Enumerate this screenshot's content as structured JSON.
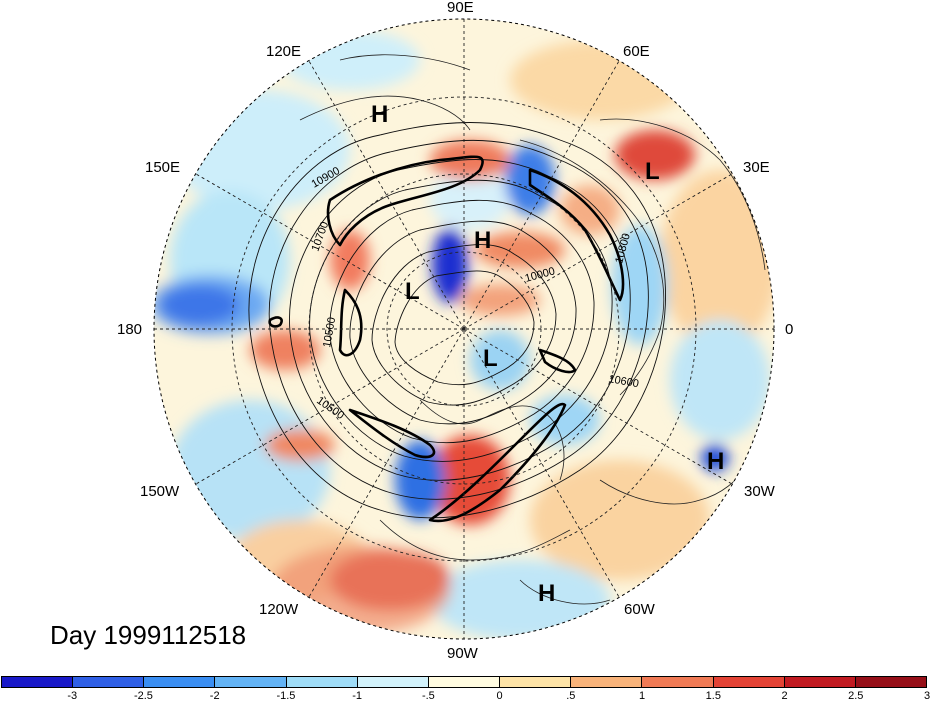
{
  "title": "Day 1999112518",
  "longitude_labels": [
    {
      "key": "lon_0",
      "text": "0"
    },
    {
      "key": "lon_30e",
      "text": "30E"
    },
    {
      "key": "lon_60e",
      "text": "60E"
    },
    {
      "key": "lon_90e",
      "text": "90E"
    },
    {
      "key": "lon_120e",
      "text": "120E"
    },
    {
      "key": "lon_150e",
      "text": "150E"
    },
    {
      "key": "lon_180",
      "text": "180"
    },
    {
      "key": "lon_150w",
      "text": "150W"
    },
    {
      "key": "lon_120w",
      "text": "120W"
    },
    {
      "key": "lon_90w",
      "text": "90W"
    },
    {
      "key": "lon_60w",
      "text": "60W"
    },
    {
      "key": "lon_30w",
      "text": "30W"
    }
  ],
  "pressure_centers": [
    "H",
    "L",
    "H",
    "L",
    "L",
    "H",
    "H"
  ],
  "contour_labels": [
    "10900",
    "10800",
    "10700",
    "10600",
    "10500",
    "10500",
    "10000"
  ],
  "colorbar": {
    "ticks": [
      "-3",
      "-2.5",
      "-2",
      "-1.5",
      "-1",
      "-.5",
      "0",
      ".5",
      "1",
      "1.5",
      "2",
      "2.5",
      "3"
    ],
    "colors": [
      "#1919c9",
      "#2f5fe6",
      "#3a8ef2",
      "#63b3f5",
      "#9fdcf7",
      "#d2f2fb",
      "#fffbe0",
      "#fde3a7",
      "#f8b37a",
      "#f07a55",
      "#e34335",
      "#c11a21",
      "#960f18"
    ]
  }
}
